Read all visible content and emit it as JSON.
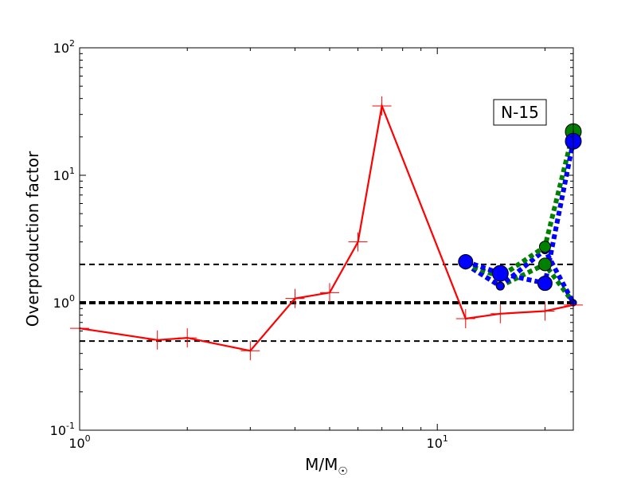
{
  "chart_data": {
    "type": "line",
    "xscale": "log",
    "yscale": "log",
    "xlim": [
      1,
      24
    ],
    "ylim": [
      0.1,
      100
    ],
    "xlabel": "M/M",
    "xlabel_sub": "☉",
    "ylabel": "Overproduction factor",
    "xticks": [
      {
        "value": 1,
        "base": "10",
        "exp": "0"
      },
      {
        "value": 10,
        "base": "10",
        "exp": "1"
      }
    ],
    "yticks": [
      {
        "value": 0.1,
        "base": "10",
        "exp": "-1"
      },
      {
        "value": 1,
        "base": "10",
        "exp": "0"
      },
      {
        "value": 10,
        "base": "10",
        "exp": "1"
      },
      {
        "value": 100,
        "base": "10",
        "exp": "2"
      }
    ],
    "annotation": "N-15",
    "annotation_position": "top-right",
    "reference_lines": [
      {
        "y": 2.0,
        "color": "#000000",
        "style": "dashed",
        "weight": "thin"
      },
      {
        "y": 1.0,
        "color": "#000000",
        "style": "dashed",
        "weight": "thick"
      },
      {
        "y": 0.5,
        "color": "#000000",
        "style": "dashed",
        "weight": "thin"
      }
    ],
    "series": [
      {
        "color": "#ff0000",
        "style": "solid",
        "marker": "plus",
        "x": [
          1.0,
          1.65,
          2.0,
          3.0,
          4.0,
          5.0,
          6.0,
          7.0,
          12.0,
          15.0,
          20.0,
          24.0
        ],
        "y": [
          0.63,
          0.51,
          0.53,
          0.42,
          1.08,
          1.2,
          3.0,
          35.0,
          0.75,
          0.82,
          0.86,
          0.96
        ]
      },
      {
        "color": "#008000",
        "style": "dotted",
        "marker": "circle",
        "x": [
          12.0,
          15.0,
          20.0,
          24.0
        ],
        "y": [
          2.0,
          1.6,
          2.75,
          22.0
        ],
        "marker_sizes": [
          6,
          6,
          7,
          10
        ]
      },
      {
        "color": "#0000ff",
        "style": "dotted",
        "marker": "circle",
        "x": [
          12.0,
          15.0,
          20.0,
          24.0
        ],
        "y": [
          2.1,
          1.7,
          1.42,
          18.5
        ],
        "marker_sizes": [
          9,
          10,
          9,
          10
        ]
      },
      {
        "color": "#008000",
        "style": "dotted",
        "marker": "circle",
        "x": [
          12.0,
          15.0,
          20.0,
          24.0
        ],
        "y": [
          2.0,
          1.35,
          2.0,
          1.0
        ],
        "marker_sizes": [
          5,
          5,
          8,
          4
        ]
      },
      {
        "color": "#0000ff",
        "style": "dotted",
        "marker": "circle",
        "x": [
          12.0,
          15.0,
          20.0,
          24.0
        ],
        "y": [
          2.0,
          1.35,
          2.6,
          1.0
        ],
        "marker_sizes": [
          5,
          5,
          5,
          4
        ]
      }
    ]
  }
}
